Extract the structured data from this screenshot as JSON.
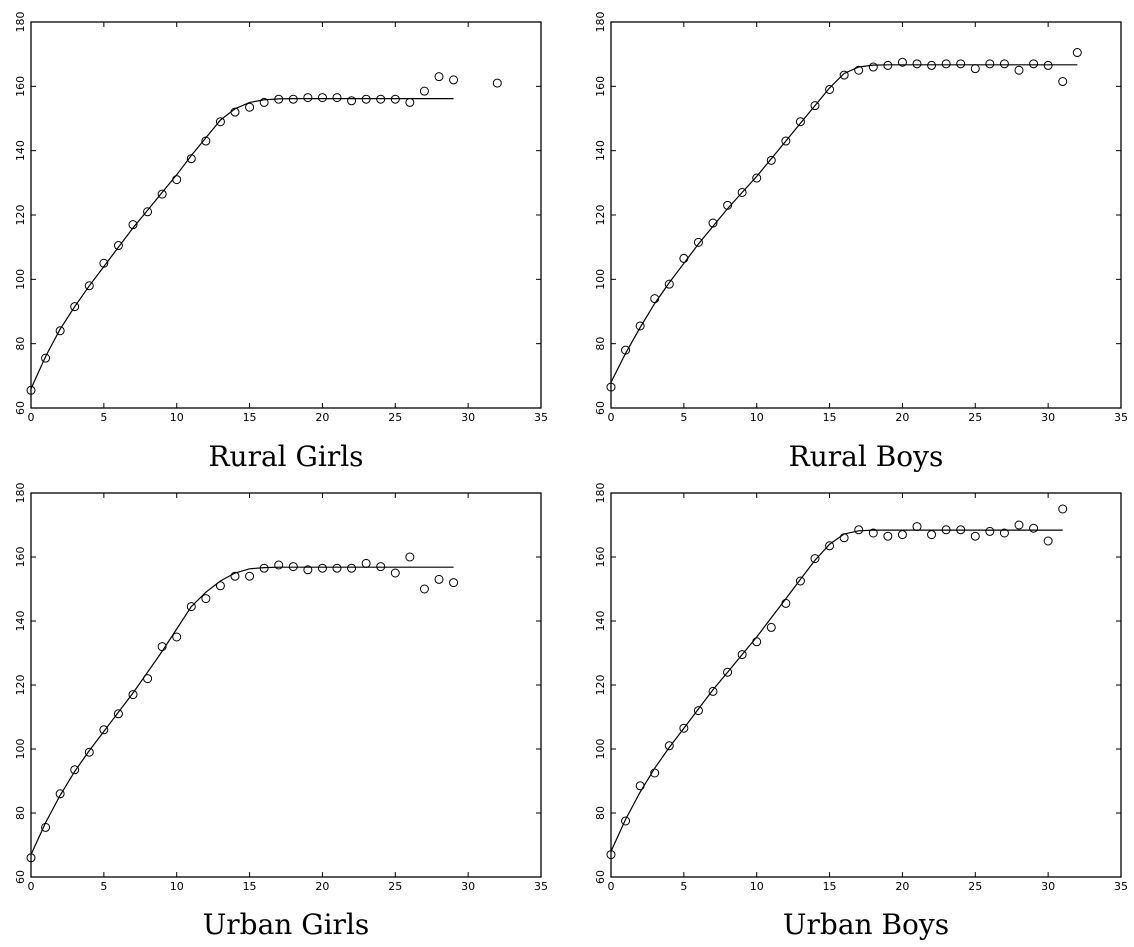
{
  "figure": {
    "panels": [
      {
        "caption": "Rural Girls"
      },
      {
        "caption": "Rural Boys"
      },
      {
        "caption": "Urban Girls"
      },
      {
        "caption": "Urban Boys"
      }
    ]
  },
  "chart_data": [
    {
      "type": "scatter",
      "title": "Rural Girls",
      "xlim": [
        0,
        35
      ],
      "ylim": [
        60,
        180
      ],
      "xticks": [
        0,
        5,
        10,
        15,
        20,
        25,
        30,
        35
      ],
      "yticks": [
        60,
        80,
        100,
        120,
        140,
        160,
        180
      ],
      "grid": false,
      "points": {
        "x": [
          0,
          1,
          2,
          3,
          4,
          5,
          6,
          7,
          8,
          9,
          10,
          11,
          12,
          13,
          14,
          15,
          16,
          17,
          18,
          19,
          20,
          21,
          22,
          23,
          24,
          25,
          26,
          27,
          28,
          29,
          32
        ],
        "y": [
          65.5,
          75.5,
          84,
          91.5,
          98,
          105,
          110.5,
          117,
          121,
          126.5,
          131,
          137.5,
          143,
          149,
          152,
          153.5,
          155,
          156,
          156,
          156.5,
          156.5,
          156.5,
          155.5,
          156,
          156,
          156,
          155,
          158.5,
          163,
          162,
          161
        ]
      },
      "fit_curve": {
        "x": [
          0,
          1,
          2,
          3,
          4,
          5,
          6,
          7,
          8,
          9,
          10,
          11,
          12,
          13,
          14,
          15,
          16,
          17,
          18,
          19,
          20,
          21,
          22,
          23,
          24,
          25,
          26,
          27,
          28,
          29
        ],
        "y": [
          66,
          76,
          84.5,
          91.5,
          98,
          104,
          110,
          116,
          121.5,
          127,
          132.5,
          138.5,
          144,
          149.5,
          153,
          155,
          155.8,
          156.1,
          156.2,
          156.2,
          156.2,
          156.2,
          156.2,
          156.2,
          156.2,
          156.2,
          156.2,
          156.2,
          156.2,
          156.2
        ]
      }
    },
    {
      "type": "scatter",
      "title": "Rural Boys",
      "xlim": [
        0,
        35
      ],
      "ylim": [
        60,
        180
      ],
      "xticks": [
        0,
        5,
        10,
        15,
        20,
        25,
        30,
        35
      ],
      "yticks": [
        60,
        80,
        100,
        120,
        140,
        160,
        180
      ],
      "grid": false,
      "points": {
        "x": [
          0,
          1,
          2,
          3,
          4,
          5,
          6,
          7,
          8,
          9,
          10,
          11,
          12,
          13,
          14,
          15,
          16,
          17,
          18,
          19,
          20,
          21,
          22,
          23,
          24,
          25,
          26,
          27,
          28,
          29,
          30,
          31,
          32
        ],
        "y": [
          66.5,
          78,
          85.5,
          94,
          98.5,
          106.5,
          111.5,
          117.5,
          123,
          127,
          131.5,
          137,
          143,
          149,
          154,
          159,
          163.5,
          165,
          166,
          166.5,
          167.5,
          167,
          166.5,
          167,
          167,
          165.5,
          167,
          167,
          165,
          167,
          166.5,
          161.5,
          170.5
        ]
      },
      "fit_curve": {
        "x": [
          0,
          1,
          2,
          3,
          4,
          5,
          6,
          7,
          8,
          9,
          10,
          11,
          12,
          13,
          14,
          15,
          16,
          17,
          18,
          19,
          20,
          21,
          22,
          23,
          24,
          25,
          26,
          27,
          28,
          29,
          30,
          31,
          32
        ],
        "y": [
          68,
          77,
          85,
          92.5,
          99,
          105,
          111,
          116.5,
          122,
          127,
          132,
          137.5,
          143,
          148.5,
          154,
          159.5,
          164,
          166,
          166.6,
          166.7,
          166.7,
          166.7,
          166.7,
          166.7,
          166.7,
          166.7,
          166.7,
          166.7,
          166.7,
          166.7,
          166.7,
          166.7,
          166.7
        ]
      }
    },
    {
      "type": "scatter",
      "title": "Urban Girls",
      "xlim": [
        0,
        35
      ],
      "ylim": [
        60,
        180
      ],
      "xticks": [
        0,
        5,
        10,
        15,
        20,
        25,
        30,
        35
      ],
      "yticks": [
        60,
        80,
        100,
        120,
        140,
        160,
        180
      ],
      "grid": false,
      "points": {
        "x": [
          0,
          1,
          2,
          3,
          4,
          5,
          6,
          7,
          8,
          9,
          10,
          11,
          12,
          13,
          14,
          15,
          16,
          17,
          18,
          19,
          20,
          21,
          22,
          23,
          24,
          25,
          26,
          27,
          28,
          29
        ],
        "y": [
          66,
          75.5,
          86,
          93.5,
          99,
          106,
          111,
          117,
          122,
          132,
          135,
          144.5,
          147,
          151,
          154,
          154,
          156.5,
          157.5,
          157,
          156,
          156.5,
          156.5,
          156.5,
          158,
          157,
          155,
          160,
          150,
          153,
          152
        ]
      },
      "fit_curve": {
        "x": [
          0,
          1,
          2,
          3,
          4,
          5,
          6,
          7,
          8,
          9,
          10,
          11,
          12,
          13,
          14,
          15,
          16,
          17,
          18,
          19,
          20,
          21,
          22,
          23,
          24,
          25,
          26,
          27,
          28,
          29
        ],
        "y": [
          67,
          77,
          85.5,
          93,
          99.5,
          105.5,
          111.5,
          117.5,
          124,
          130.5,
          137.5,
          144.5,
          149,
          152.5,
          155,
          156.3,
          156.7,
          156.8,
          156.8,
          156.8,
          156.8,
          156.8,
          156.8,
          156.8,
          156.8,
          156.8,
          156.8,
          156.8,
          156.8,
          156.8
        ]
      }
    },
    {
      "type": "scatter",
      "title": "Urban Boys",
      "xlim": [
        0,
        35
      ],
      "ylim": [
        60,
        180
      ],
      "xticks": [
        0,
        5,
        10,
        15,
        20,
        25,
        30,
        35
      ],
      "yticks": [
        60,
        80,
        100,
        120,
        140,
        160,
        180
      ],
      "grid": false,
      "points": {
        "x": [
          0,
          1,
          2,
          3,
          4,
          5,
          6,
          7,
          8,
          9,
          10,
          11,
          12,
          13,
          14,
          15,
          16,
          17,
          18,
          19,
          20,
          21,
          22,
          23,
          24,
          25,
          26,
          27,
          28,
          29,
          30,
          31
        ],
        "y": [
          67,
          77.5,
          88.5,
          92.5,
          101,
          106.5,
          112,
          118,
          124,
          129.5,
          133.5,
          138,
          145.5,
          152.5,
          159.5,
          163.5,
          166,
          168.5,
          167.5,
          166.5,
          167,
          169.5,
          167,
          168.5,
          168.5,
          166.5,
          168,
          167.5,
          170,
          169,
          165,
          175
        ]
      },
      "fit_curve": {
        "x": [
          0,
          1,
          2,
          3,
          4,
          5,
          6,
          7,
          8,
          9,
          10,
          11,
          12,
          13,
          14,
          15,
          16,
          17,
          18,
          19,
          20,
          21,
          22,
          23,
          24,
          25,
          26,
          27,
          28,
          29,
          30,
          31
        ],
        "y": [
          68,
          78,
          86.5,
          94,
          100.5,
          106.5,
          112.5,
          118.5,
          124,
          129.5,
          135,
          141,
          147,
          153,
          159,
          164,
          167.2,
          168.2,
          168.4,
          168.4,
          168.4,
          168.4,
          168.4,
          168.4,
          168.4,
          168.4,
          168.4,
          168.4,
          168.4,
          168.4,
          168.4,
          168.4
        ]
      }
    }
  ]
}
